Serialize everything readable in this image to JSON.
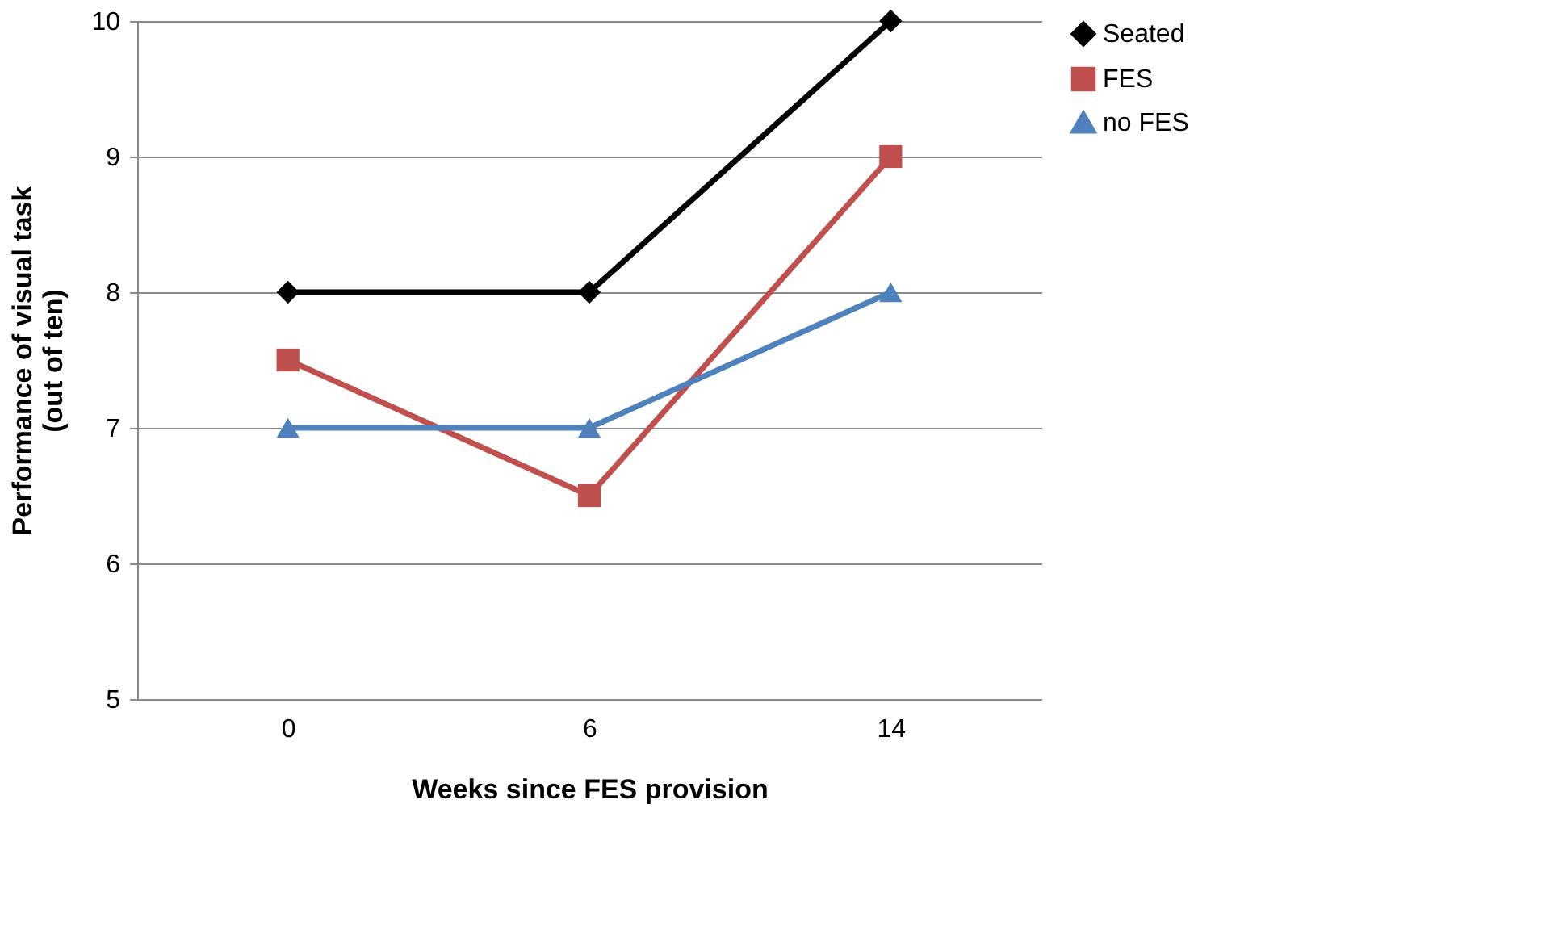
{
  "chart_data": {
    "type": "line",
    "xlabel": "Weeks since FES provision",
    "ylabel": "Performance of visual task\n(out of ten)",
    "categories": [
      "0",
      "6",
      "14"
    ],
    "series": [
      {
        "name": "Seated",
        "color": "#000000",
        "marker": "diamond",
        "values": [
          8,
          8,
          10
        ]
      },
      {
        "name": "FES",
        "color": "#c0504d",
        "marker": "square",
        "values": [
          7.5,
          6.5,
          9
        ]
      },
      {
        "name": "no FES",
        "color": "#4f81bd",
        "marker": "triangle",
        "values": [
          7,
          7,
          8
        ]
      }
    ],
    "ylim": [
      5,
      10
    ],
    "yticks": [
      5,
      6,
      7,
      8,
      9,
      10
    ],
    "grid": "y",
    "legend": "right",
    "line_style": "solid"
  }
}
